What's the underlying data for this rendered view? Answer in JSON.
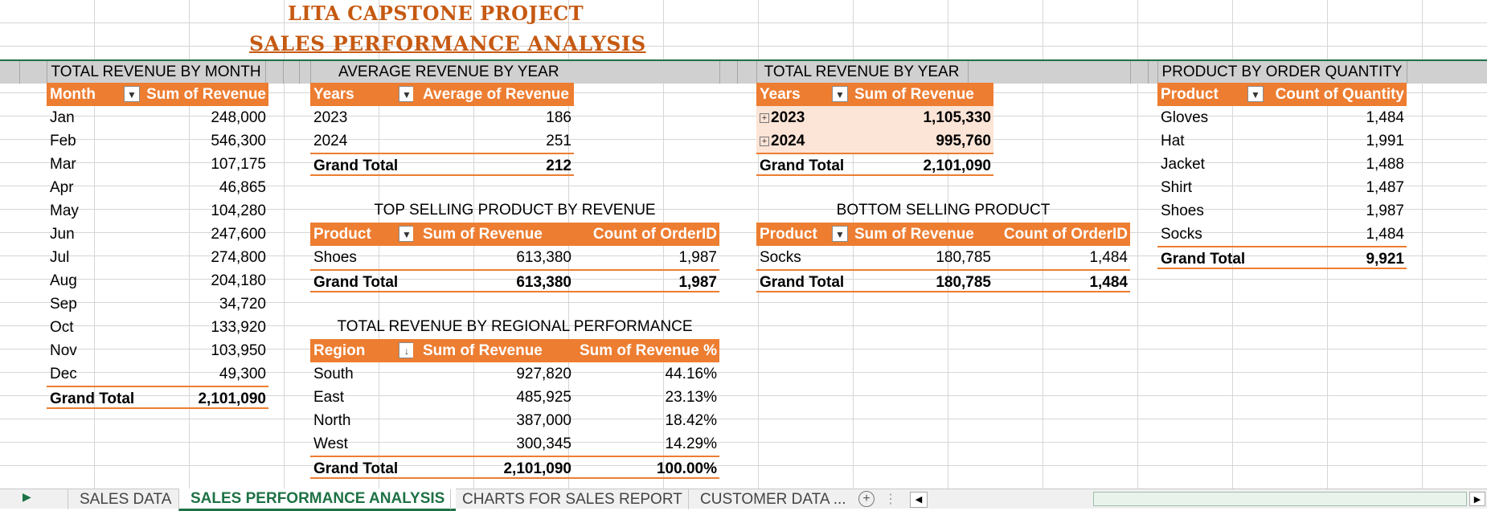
{
  "titles": {
    "project": "LITA CAPSTONE PROJECT",
    "analysis": "SALES PERFORMANCE ANALYSIS"
  },
  "sections": {
    "month": "TOTAL REVENUE BY MONTH",
    "avg_year": "AVERAGE REVENUE BY YEAR",
    "total_year": "TOTAL REVENUE BY YEAR",
    "product_qty": "PRODUCT BY ORDER QUANTITY",
    "top_selling": "TOP SELLING PRODUCT BY REVENUE",
    "bottom_selling": "BOTTOM SELLING PRODUCT",
    "regional": "TOTAL REVENUE BY REGIONAL PERFORMANCE"
  },
  "month_table": {
    "headers": [
      "Month",
      "Sum of Revenue"
    ],
    "rows": [
      [
        "Jan",
        "248,000"
      ],
      [
        "Feb",
        "546,300"
      ],
      [
        "Mar",
        "107,175"
      ],
      [
        "Apr",
        "46,865"
      ],
      [
        "May",
        "104,280"
      ],
      [
        "Jun",
        "247,600"
      ],
      [
        "Jul",
        "274,800"
      ],
      [
        "Aug",
        "204,180"
      ],
      [
        "Sep",
        "34,720"
      ],
      [
        "Oct",
        "133,920"
      ],
      [
        "Nov",
        "103,950"
      ],
      [
        "Dec",
        "49,300"
      ]
    ],
    "total": [
      "Grand Total",
      "2,101,090"
    ]
  },
  "avg_year_table": {
    "headers": [
      "Years",
      "Average of Revenue"
    ],
    "rows": [
      [
        "2023",
        "186"
      ],
      [
        "2024",
        "251"
      ]
    ],
    "total": [
      "Grand Total",
      "212"
    ]
  },
  "total_year_table": {
    "headers": [
      "Years",
      "Sum of Revenue"
    ],
    "rows": [
      [
        "2023",
        "1,105,330"
      ],
      [
        "2024",
        "995,760"
      ]
    ],
    "total": [
      "Grand Total",
      "2,101,090"
    ]
  },
  "product_qty_table": {
    "headers": [
      "Product",
      "Count of Quantity"
    ],
    "rows": [
      [
        "Gloves",
        "1,484"
      ],
      [
        "Hat",
        "1,991"
      ],
      [
        "Jacket",
        "1,488"
      ],
      [
        "Shirt",
        "1,487"
      ],
      [
        "Shoes",
        "1,987"
      ],
      [
        "Socks",
        "1,484"
      ]
    ],
    "total": [
      "Grand Total",
      "9,921"
    ]
  },
  "top_selling_table": {
    "headers": [
      "Product",
      "Sum of Revenue",
      "Count of OrderID"
    ],
    "rows": [
      [
        "Shoes",
        "613,380",
        "1,987"
      ]
    ],
    "total": [
      "Grand Total",
      "613,380",
      "1,987"
    ]
  },
  "bottom_selling_table": {
    "headers": [
      "Product",
      "Sum of Revenue",
      "Count of OrderID"
    ],
    "rows": [
      [
        "Socks",
        "180,785",
        "1,484"
      ]
    ],
    "total": [
      "Grand Total",
      "180,785",
      "1,484"
    ]
  },
  "regional_table": {
    "headers": [
      "Region",
      "Sum of Revenue",
      "Sum of Revenue %"
    ],
    "rows": [
      [
        "South",
        "927,820",
        "44.16%"
      ],
      [
        "East",
        "485,925",
        "23.13%"
      ],
      [
        "North",
        "387,000",
        "18.42%"
      ],
      [
        "West",
        "300,345",
        "14.29%"
      ]
    ],
    "total": [
      "Grand Total",
      "2,101,090",
      "100.00%"
    ]
  },
  "sheet_tabs": [
    "SALES DATA",
    "SALES PERFORMANCE ANALYSIS",
    "CHARTS FOR SALES REPORT",
    "CUSTOMER DATA ..."
  ],
  "colors": {
    "header": "#ed7d31",
    "title": "#c65911",
    "active_tab": "#1e7145",
    "highlight": "#fce4d6"
  },
  "icons": [
    "filter-dropdown-icon",
    "sort-descending-icon",
    "expand-plus-icon",
    "add-sheet-icon",
    "scroll-left-icon",
    "scroll-right-icon"
  ]
}
